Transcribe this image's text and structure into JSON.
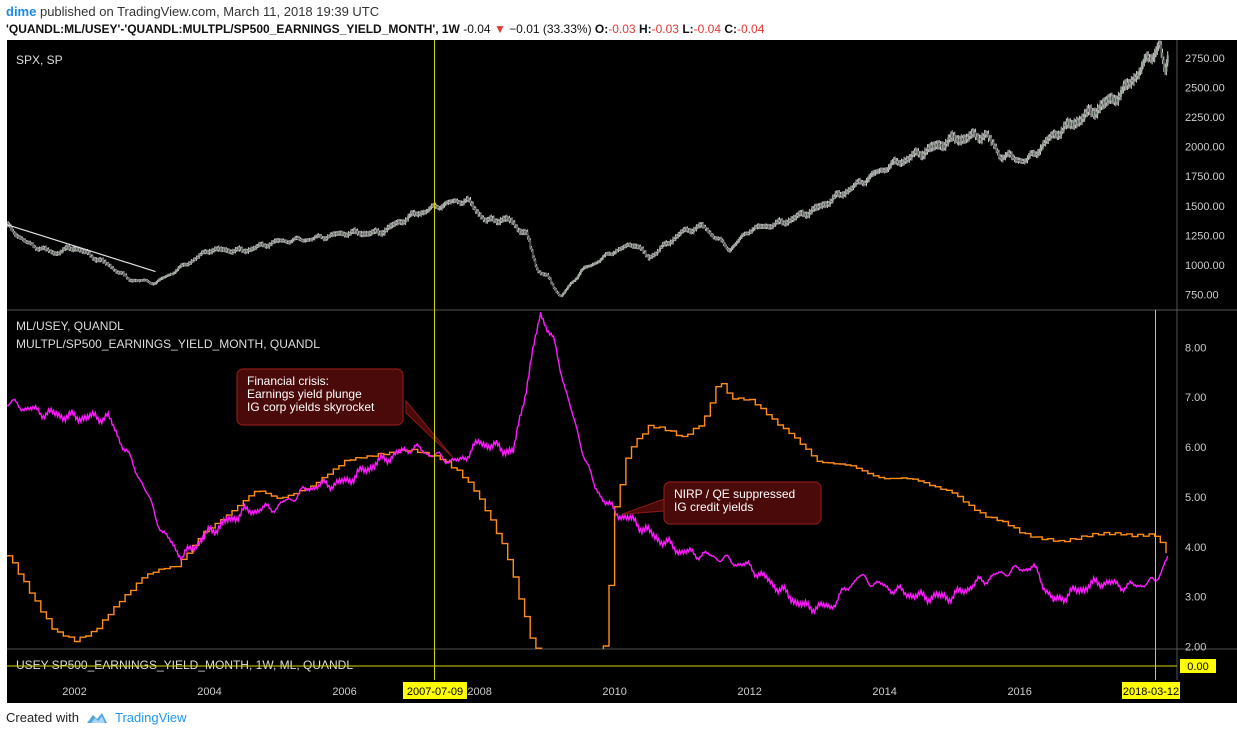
{
  "header": {
    "author": "dime",
    "published_text": "published on TradingView.com, March 11, 2018 19:39 UTC",
    "symbol": "'QUANDL:ML/USEY'-'QUANDL:MULTPL/SP500_EARNINGS_YIELD_MONTH', 1W",
    "last": "-0.04",
    "change": "−0.01 (33.33%)",
    "o_label": "O:",
    "o_value": "-0.03",
    "h_label": "H:",
    "h_value": "-0.03",
    "l_label": "L:",
    "l_value": "-0.04",
    "c_label": "C:",
    "c_value": "-0.04"
  },
  "footer": {
    "created_with": "Created with",
    "brand": "TradingView"
  },
  "colors": {
    "background": "#000000",
    "price_up": "#9aa89a",
    "sp500": "#c8c8c8",
    "trendline": "#e0e0e0",
    "usey": "#ff8c1a",
    "earnings_yield": "#ff1aff",
    "crosshair": "#d4d400",
    "callout_fill": "#4a0a0a",
    "callout_border": "#8b1a1a",
    "marker_bg": "#ffff00",
    "axis_text_light": "#cccccc"
  },
  "chart_data": [
    {
      "type": "line",
      "title": "SPX, SP",
      "y_ticks": [
        750,
        1000,
        1250,
        1500,
        1750,
        2000,
        2250,
        2500,
        2750
      ],
      "ylim": [
        620,
        2900
      ],
      "series": [
        {
          "name": "SPX",
          "x": [
            2001.0,
            2001.3,
            2001.7,
            2002.0,
            2002.5,
            2002.8,
            2003.2,
            2003.6,
            2004.0,
            2004.5,
            2005.0,
            2005.5,
            2006.0,
            2006.5,
            2007.0,
            2007.5,
            2007.8,
            2008.1,
            2008.4,
            2008.7,
            2008.85,
            2009.0,
            2009.2,
            2009.5,
            2010.0,
            2010.3,
            2010.5,
            2011.0,
            2011.3,
            2011.7,
            2012.0,
            2012.5,
            2013.0,
            2013.5,
            2014.0,
            2014.5,
            2015.0,
            2015.5,
            2015.7,
            2016.1,
            2016.5,
            2017.0,
            2017.5,
            2018.0,
            2018.07,
            2018.15,
            2018.2
          ],
          "values": [
            1330,
            1180,
            1100,
            1150,
            1000,
            880,
            850,
            990,
            1130,
            1120,
            1200,
            1220,
            1270,
            1270,
            1420,
            1520,
            1550,
            1370,
            1390,
            1250,
            960,
            900,
            730,
            950,
            1120,
            1180,
            1060,
            1280,
            1330,
            1130,
            1300,
            1360,
            1480,
            1650,
            1820,
            1940,
            2060,
            2100,
            1930,
            1880,
            2100,
            2270,
            2450,
            2810,
            2870,
            2600,
            2780
          ]
        }
      ],
      "annotations": [
        {
          "type": "trendline",
          "from": [
            2001.0,
            1340
          ],
          "to": [
            2003.2,
            945
          ]
        }
      ]
    },
    {
      "type": "line",
      "legend": [
        "ML/USEY, QUANDL",
        "MULTPL/SP500_EARNINGS_YIELD_MONTH, QUANDL"
      ],
      "y_ticks": [
        2.0,
        3.0,
        4.0,
        5.0,
        6.0,
        7.0,
        8.0
      ],
      "ylim": [
        1.95,
        8.75
      ],
      "series": [
        {
          "name": "ML/USEY",
          "x": [
            2001.0,
            2001.3,
            2001.7,
            2002.0,
            2002.3,
            2002.7,
            2003.0,
            2003.5,
            2003.9,
            2004.3,
            2004.7,
            2005.0,
            2005.5,
            2006.0,
            2006.5,
            2007.0,
            2007.4,
            2007.7,
            2007.9,
            2008.1,
            2008.4,
            2008.8,
            2009.2,
            2009.6,
            2009.85,
            2010.0,
            2010.2,
            2010.5,
            2010.8,
            2011.0,
            2011.3,
            2011.55,
            2011.7,
            2012.0,
            2012.3,
            2012.6,
            2013.0,
            2013.5,
            2014.0,
            2014.5,
            2015.0,
            2015.5,
            2016.0,
            2016.3,
            2016.6,
            2017.0,
            2017.5,
            2018.0,
            2018.2
          ],
          "values": [
            3.8,
            3.2,
            2.3,
            2.1,
            2.3,
            3.0,
            3.4,
            3.6,
            4.3,
            4.7,
            5.1,
            5.0,
            5.2,
            5.7,
            5.9,
            5.9,
            5.8,
            5.5,
            5.2,
            4.7,
            3.8,
            2.0,
            1.8,
            1.6,
            2.0,
            4.8,
            6.0,
            6.4,
            6.3,
            6.2,
            6.5,
            7.4,
            7.0,
            6.9,
            6.6,
            6.3,
            5.7,
            5.6,
            5.4,
            5.3,
            5.1,
            4.6,
            4.3,
            4.2,
            4.1,
            4.2,
            4.3,
            4.2,
            3.8
          ]
        },
        {
          "name": "MULTPL/SP500_EARNINGS_YIELD_MONTH",
          "x": [
            2001.0,
            2001.5,
            2002.0,
            2002.5,
            2003.0,
            2003.3,
            2003.6,
            2004.0,
            2004.5,
            2005.0,
            2005.5,
            2006.0,
            2006.5,
            2007.0,
            2007.4,
            2007.7,
            2008.0,
            2008.5,
            2008.75,
            2008.9,
            2009.1,
            2009.4,
            2009.7,
            2010.0,
            2010.3,
            2010.6,
            2011.0,
            2011.5,
            2012.0,
            2012.4,
            2012.8,
            2013.2,
            2013.6,
            2014.0,
            2014.5,
            2015.0,
            2015.4,
            2015.8,
            2016.2,
            2016.5,
            2016.8,
            2017.2,
            2017.6,
            2018.0,
            2018.2
          ],
          "values": [
            6.9,
            6.7,
            6.6,
            6.6,
            5.3,
            4.3,
            3.8,
            4.3,
            4.7,
            4.8,
            5.2,
            5.3,
            5.7,
            6.0,
            5.8,
            5.7,
            6.1,
            5.9,
            7.6,
            8.7,
            8.1,
            6.5,
            5.2,
            4.7,
            4.5,
            4.2,
            3.9,
            3.8,
            3.6,
            3.2,
            2.8,
            2.8,
            3.4,
            3.2,
            3.0,
            3.0,
            3.3,
            3.5,
            3.6,
            2.9,
            3.1,
            3.3,
            3.2,
            3.3,
            3.8
          ]
        }
      ],
      "annotations": [
        {
          "lines": [
            "Financial crisis:",
            "Earnings yield plunge",
            "IG corp yields skyrocket"
          ],
          "points_to": [
            2007.6,
            5.8
          ]
        },
        {
          "lines": [
            "NIRP / QE  suppressed",
            "IG credit yields"
          ],
          "points_to": [
            2010.1,
            4.65
          ]
        }
      ]
    },
    {
      "type": "line",
      "title": "USEY-SP500_EARNINGS_YIELD_MONTH, 1W, ML, QUANDL",
      "value_marker": "0.00"
    }
  ],
  "x_axis": {
    "ticks": [
      "2002",
      "2004",
      "2006",
      "2008",
      "2010",
      "2012",
      "2014",
      "2016"
    ],
    "crosshair_label": "2007-07-09",
    "end_label": "2018-03-12"
  }
}
